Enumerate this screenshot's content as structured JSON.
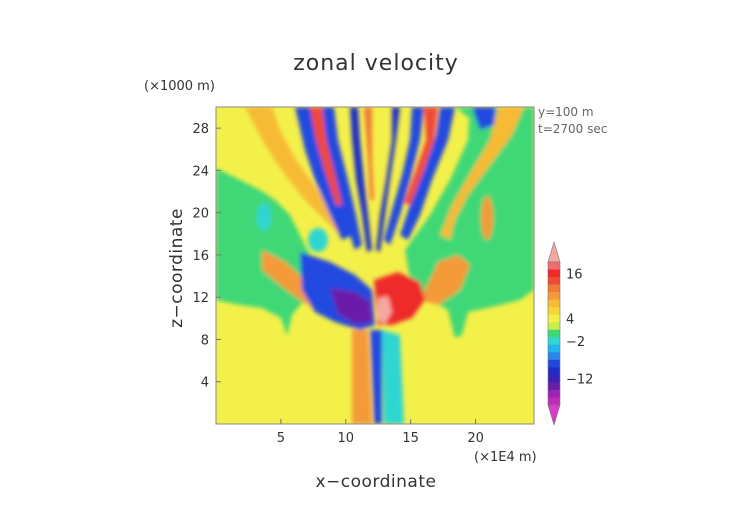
{
  "chart_data": {
    "type": "heatmap",
    "title": "zonal velocity",
    "xlabel": "x−coordinate",
    "ylabel": "z−coordinate",
    "x_unit": "(×1E4 m)",
    "y_unit": "(×1000 m)",
    "annotations": [
      "y=100 m",
      "t=2700 sec"
    ],
    "xlim": [
      0,
      24.5
    ],
    "ylim": [
      0,
      30
    ],
    "x_ticks": [
      5,
      10,
      15,
      20
    ],
    "y_ticks": [
      4,
      8,
      12,
      16,
      20,
      24,
      28
    ],
    "colorbar": {
      "tick_labels": [
        "16",
        "4",
        "−2",
        "−12"
      ],
      "tick_values": [
        16,
        4,
        -2,
        -12
      ],
      "levels": [
        {
          "value": 20,
          "color": "#f5a8a0"
        },
        {
          "value": 18,
          "color": "#f36c6c"
        },
        {
          "value": 16,
          "color": "#ee2a2a"
        },
        {
          "value": 14,
          "color": "#f04a34"
        },
        {
          "value": 12,
          "color": "#f07a36"
        },
        {
          "value": 10,
          "color": "#f49a38"
        },
        {
          "value": 8,
          "color": "#f6ba36"
        },
        {
          "value": 6,
          "color": "#f8d53a"
        },
        {
          "value": 4,
          "color": "#f4f04a"
        },
        {
          "value": 2,
          "color": "#c8ef46"
        },
        {
          "value": 0,
          "color": "#3fd876"
        },
        {
          "value": -2,
          "color": "#2fd6d2"
        },
        {
          "value": -4,
          "color": "#22b6ee"
        },
        {
          "value": -6,
          "color": "#2a86e8"
        },
        {
          "value": -8,
          "color": "#2248e0"
        },
        {
          "value": -10,
          "color": "#1e2ec8"
        },
        {
          "value": -12,
          "color": "#3c20b8"
        },
        {
          "value": -14,
          "color": "#6a1ea8"
        },
        {
          "value": -16,
          "color": "#9a24b4"
        },
        {
          "value": -18,
          "color": "#c02ab8"
        },
        {
          "value": -20,
          "color": "#d83cc8"
        }
      ]
    }
  }
}
